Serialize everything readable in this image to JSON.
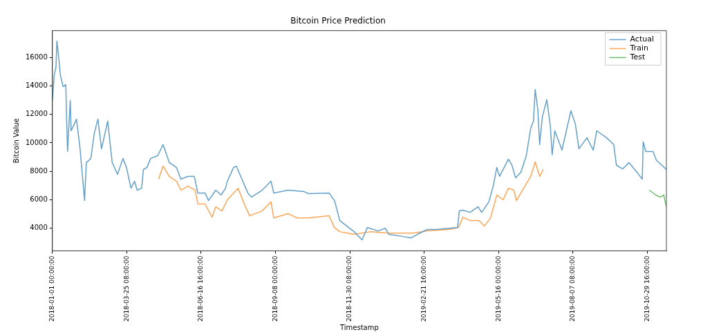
{
  "chart_data": {
    "type": "line",
    "title": "Bitcoin Price Prediction",
    "xlabel": "Timestamp",
    "ylabel": "Bitcoin Value",
    "xlim": [
      "2018-01-01T00:00",
      "2019-11-20T00:00"
    ],
    "ylim": [
      2400,
      17900
    ],
    "xticks": [
      {
        "value": "2018-01-01T00:00",
        "label": "2018-01-01 00:00:00"
      },
      {
        "value": "2018-03-25T08:00",
        "label": "2018-03-25 08:00:00"
      },
      {
        "value": "2018-06-16T16:00",
        "label": "2018-06-16 16:00:00"
      },
      {
        "value": "2018-09-08T00:00",
        "label": "2018-09-08 00:00:00"
      },
      {
        "value": "2018-11-30T08:00",
        "label": "2018-11-30 08:00:00"
      },
      {
        "value": "2019-02-21T16:00",
        "label": "2019-02-21 16:00:00"
      },
      {
        "value": "2019-05-16T00:00",
        "label": "2019-05-16 00:00:00"
      },
      {
        "value": "2019-08-07T08:00",
        "label": "2019-08-07 08:00:00"
      },
      {
        "value": "2019-10-29T16:00",
        "label": "2019-10-29 16:00:00"
      }
    ],
    "yticks": [
      4000,
      6000,
      8000,
      10000,
      12000,
      14000,
      16000
    ],
    "grid": false,
    "legend": "top right",
    "marker": "none",
    "line_style": "solid",
    "series": [
      {
        "name": "Actual",
        "color": "#62a0cb",
        "x": [
          "2018-01-01",
          "2018-01-03",
          "2018-01-05",
          "2018-01-06",
          "2018-01-08",
          "2018-01-10",
          "2018-01-13",
          "2018-01-16",
          "2018-01-17",
          "2018-01-18",
          "2018-01-21",
          "2018-01-22",
          "2018-01-28",
          "2018-02-01",
          "2018-02-03",
          "2018-02-06",
          "2018-02-08",
          "2018-02-13",
          "2018-02-17",
          "2018-02-21",
          "2018-02-25",
          "2018-03-04",
          "2018-03-09",
          "2018-03-15",
          "2018-03-21",
          "2018-03-25",
          "2018-03-30",
          "2018-04-03",
          "2018-04-06",
          "2018-04-11",
          "2018-04-13",
          "2018-04-17",
          "2018-04-21",
          "2018-04-29",
          "2018-05-05",
          "2018-05-12",
          "2018-05-20",
          "2018-05-25",
          "2018-06-02",
          "2018-06-09",
          "2018-06-13",
          "2018-06-21",
          "2018-06-25",
          "2018-07-03",
          "2018-07-09",
          "2018-07-14",
          "2018-07-16",
          "2018-07-23",
          "2018-07-26",
          "2018-07-31",
          "2018-08-08",
          "2018-08-12",
          "2018-08-24",
          "2018-09-03",
          "2018-09-06",
          "2018-09-22",
          "2018-10-10",
          "2018-10-15",
          "2018-11-07",
          "2018-11-13",
          "2018-11-15",
          "2018-11-19",
          "2018-11-27",
          "2018-12-05",
          "2018-12-14",
          "2018-12-20",
          "2019-01-01",
          "2019-01-09",
          "2019-01-13",
          "2019-01-29",
          "2019-02-07",
          "2019-02-14",
          "2019-02-25",
          "2019-03-07",
          "2019-03-21",
          "2019-03-31",
          "2019-04-02",
          "2019-04-06",
          "2019-04-14",
          "2019-04-23",
          "2019-04-27",
          "2019-05-05",
          "2019-05-10",
          "2019-05-14",
          "2019-05-17",
          "2019-05-27",
          "2019-05-31",
          "2019-06-04",
          "2019-06-10",
          "2019-06-16",
          "2019-06-21",
          "2019-06-24",
          "2019-06-26",
          "2019-06-29",
          "2019-07-01",
          "2019-07-04",
          "2019-07-09",
          "2019-07-13",
          "2019-07-15",
          "2019-07-18",
          "2019-07-26",
          "2019-08-05",
          "2019-08-10",
          "2019-08-14",
          "2019-08-23",
          "2019-08-30",
          "2019-09-03",
          "2019-09-14",
          "2019-09-22",
          "2019-09-25",
          "2019-10-02",
          "2019-10-09",
          "2019-10-18",
          "2019-10-24",
          "2019-10-25",
          "2019-10-28",
          "2019-11-05",
          "2019-11-09",
          "2019-11-20"
        ],
        "values": [
          13000,
          14740,
          15320,
          17170,
          16050,
          14740,
          13960,
          14100,
          11530,
          9390,
          12990,
          10850,
          11670,
          9580,
          8130,
          5940,
          8610,
          8900,
          10700,
          11670,
          9580,
          11530,
          8610,
          7790,
          8900,
          8270,
          6810,
          7300,
          6670,
          6810,
          8130,
          8270,
          8900,
          9100,
          9880,
          8610,
          8270,
          7450,
          7640,
          7640,
          6470,
          6470,
          5940,
          6670,
          6330,
          6810,
          7300,
          8270,
          8370,
          7640,
          6470,
          6180,
          6670,
          7300,
          6470,
          6670,
          6570,
          6430,
          6470,
          5940,
          5500,
          4530,
          4140,
          3750,
          3170,
          4040,
          3800,
          3990,
          3560,
          3410,
          3310,
          3560,
          3900,
          3900,
          3990,
          4040,
          5210,
          5260,
          5110,
          5500,
          5110,
          5840,
          6960,
          8270,
          7640,
          8850,
          8420,
          7540,
          7930,
          9100,
          11040,
          11530,
          13760,
          12300,
          9880,
          11820,
          13040,
          11190,
          9150,
          10850,
          9490,
          12260,
          11330,
          9580,
          10360,
          9490,
          10850,
          10360,
          9880,
          8420,
          8170,
          8610,
          7930,
          7450,
          10070,
          9390,
          9390,
          8760,
          8130
        ]
      },
      {
        "name": "Train",
        "color": "#ffa556",
        "x": [
          "2018-04-30",
          "2018-05-05",
          "2018-05-12",
          "2018-05-20",
          "2018-05-25",
          "2018-06-02",
          "2018-06-10",
          "2018-06-13",
          "2018-06-21",
          "2018-06-29",
          "2018-07-03",
          "2018-07-10",
          "2018-07-16",
          "2018-07-28",
          "2018-08-04",
          "2018-08-10",
          "2018-08-24",
          "2018-09-03",
          "2018-09-06",
          "2018-09-22",
          "2018-10-02",
          "2018-10-15",
          "2018-11-07",
          "2018-11-13",
          "2018-11-19",
          "2018-12-05",
          "2018-12-24",
          "2019-01-13",
          "2019-02-09",
          "2019-02-25",
          "2019-03-21",
          "2019-04-01",
          "2019-04-06",
          "2019-04-14",
          "2019-04-24",
          "2019-04-30",
          "2019-05-07",
          "2019-05-14",
          "2019-05-21",
          "2019-05-27",
          "2019-06-02",
          "2019-06-05",
          "2019-06-13",
          "2019-06-21",
          "2019-06-26",
          "2019-07-01",
          "2019-07-05"
        ],
        "values": [
          7450,
          8370,
          7640,
          7300,
          6670,
          6960,
          6670,
          5700,
          5700,
          4770,
          5500,
          5210,
          5990,
          6810,
          5700,
          4870,
          5210,
          5840,
          4720,
          5020,
          4720,
          4720,
          4870,
          4040,
          3750,
          3560,
          3750,
          3650,
          3650,
          3800,
          3900,
          4040,
          4770,
          4530,
          4530,
          4140,
          4720,
          6330,
          5990,
          6810,
          6670,
          5940,
          6810,
          7640,
          8660,
          7640,
          8130
        ]
      },
      {
        "name": "Test",
        "color": "#6bbc6b",
        "x": [
          "2019-11-01",
          "2019-11-08",
          "2019-11-13",
          "2019-11-17",
          "2019-11-20"
        ],
        "values": [
          6670,
          6330,
          6180,
          6330,
          5500
        ]
      }
    ]
  }
}
